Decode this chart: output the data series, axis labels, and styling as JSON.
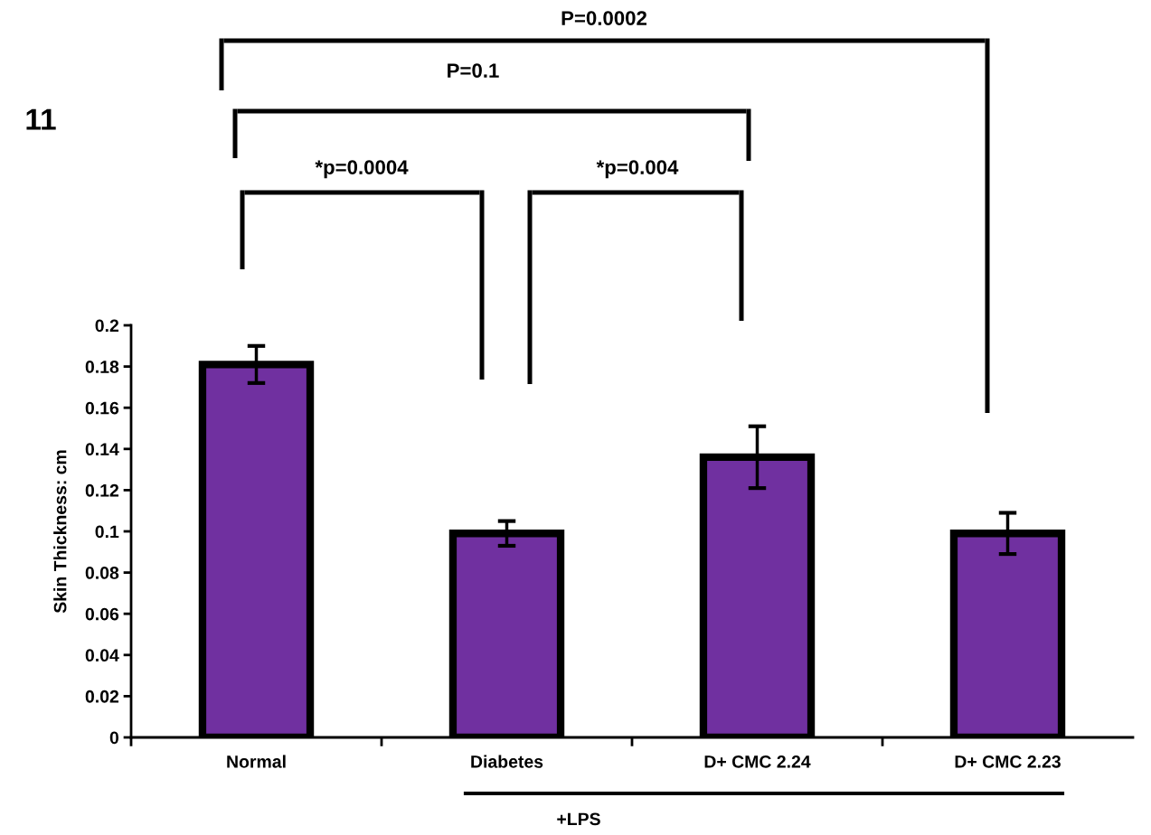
{
  "chart_data": {
    "type": "bar",
    "ylabel": "Skin Thickness: cm",
    "categories": [
      "Normal",
      "Diabetes",
      "D+ CMC 2.24",
      "D+ CMC 2.23"
    ],
    "values": [
      0.181,
      0.099,
      0.136,
      0.099
    ],
    "errors": [
      0.009,
      0.006,
      0.015,
      0.01
    ],
    "color": "#7030a0",
    "ylim": [
      0,
      0.2
    ],
    "yticks": [
      0,
      0.02,
      0.04,
      0.06,
      0.08,
      0.1,
      0.12,
      0.14,
      0.16,
      0.18,
      0.2
    ],
    "grid": false,
    "annotations": [
      "P=0.0002",
      "P=0.1",
      "*p=0.0004",
      "*p=0.004",
      "11",
      "+LPS"
    ]
  }
}
